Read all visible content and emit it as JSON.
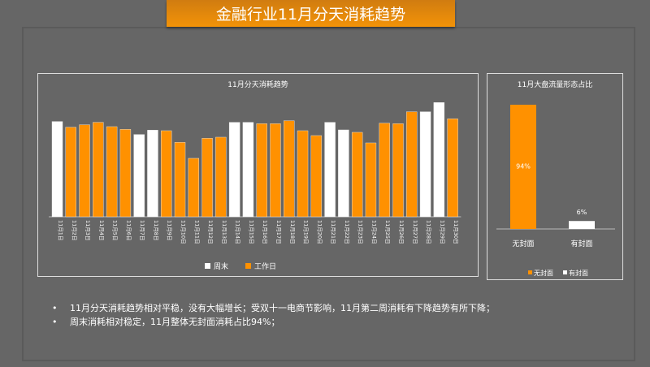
{
  "title": "金融行业11月分天消耗趋势",
  "chart_data": [
    {
      "type": "bar",
      "title": "11月分天消耗趋势",
      "categories": [
        "11月1日",
        "11月2日",
        "11月3日",
        "11月4日",
        "11月5日",
        "11月6日",
        "11月7日",
        "11月8日",
        "11月9日",
        "11月10日",
        "11月11日",
        "11月12日",
        "11月13日",
        "11月14日",
        "11月15日",
        "11月16日",
        "11月17日",
        "11月18日",
        "11月19日",
        "11月20日",
        "11月21日",
        "11月22日",
        "11月23日",
        "11月24日",
        "11月25日",
        "11月26日",
        "11月27日",
        "11月28日",
        "11月29日",
        "11月30日"
      ],
      "values": [
        352,
        331,
        340,
        349,
        333,
        323,
        304,
        320,
        318,
        275,
        216,
        290,
        294,
        349,
        349,
        344,
        344,
        355,
        318,
        300,
        349,
        321,
        312,
        273,
        346,
        344,
        388,
        388,
        422,
        362
      ],
      "day_type": [
        "周末",
        "工作日",
        "工作日",
        "工作日",
        "工作日",
        "工作日",
        "周末",
        "周末",
        "工作日",
        "工作日",
        "工作日",
        "工作日",
        "工作日",
        "周末",
        "周末",
        "工作日",
        "工作日",
        "工作日",
        "工作日",
        "工作日",
        "周末",
        "周末",
        "工作日",
        "工作日",
        "工作日",
        "工作日",
        "工作日",
        "周末",
        "周末",
        "工作日"
      ],
      "series": [
        {
          "name": "周末",
          "color": "#ffffff"
        },
        {
          "name": "工作日",
          "color": "#ff9100"
        }
      ],
      "ylim": [
        0,
        440
      ],
      "y_axis_shown": false,
      "grid": false,
      "legend": "bottom"
    },
    {
      "type": "bar",
      "title": "11月大盘流量形态占比",
      "categories": [
        "无封面",
        "有封面"
      ],
      "values": [
        94,
        6
      ],
      "data_labels": [
        "94%",
        "6%"
      ],
      "colors": [
        "#ff9100",
        "#ffffff"
      ],
      "ylim": [
        0,
        100
      ],
      "grid": false,
      "legend": "bottom",
      "legend_entries": [
        "无封面",
        "有封面"
      ]
    }
  ],
  "bullets": [
    "11月分天消耗趋势相对平稳，没有大幅增长；受双十一电商节影响，11月第二周消耗有下降趋势有所下降；",
    "周末消耗相对稳定，11月整体无封面消耗占比94%；"
  ]
}
